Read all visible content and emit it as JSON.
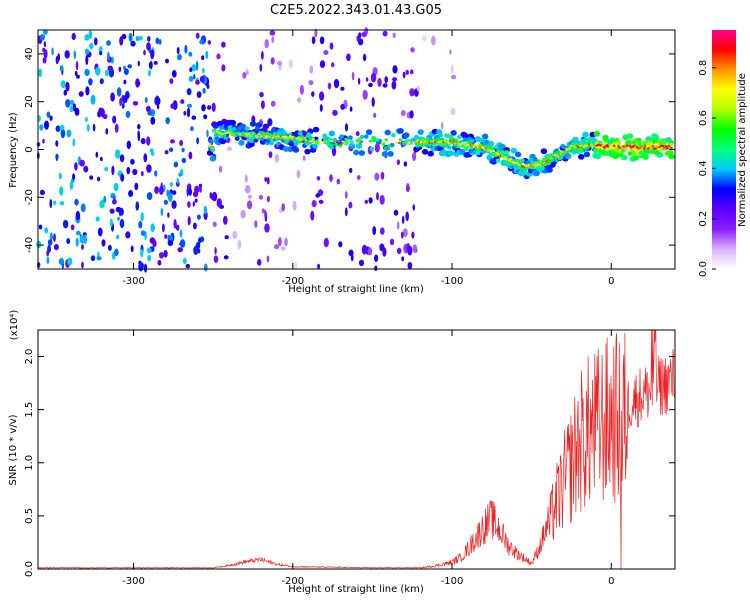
{
  "title": "C2E5.2022.343.01.43.G05",
  "chart_data": [
    {
      "type": "heatmap",
      "xlabel": "Height of straight line (km)",
      "ylabel": "Frequency (Hz)",
      "xlim": [
        -360,
        40
      ],
      "ylim": [
        -50,
        50
      ],
      "xticks": [
        -300,
        -200,
        -100,
        0
      ],
      "yticks": [
        -40,
        -20,
        0,
        20,
        40
      ],
      "colorbar": {
        "label": "Normalized spectral amplitude",
        "ticks": [
          "0.0",
          "0.2",
          "0.4",
          "0.6",
          "0.8"
        ],
        "tick_values": [
          0,
          0.2,
          0.4,
          0.6,
          0.8
        ],
        "range": [
          0,
          0.95
        ],
        "colors": [
          "#ffffff",
          "#d9b3ff",
          "#8a1cff",
          "#5a00ff",
          "#0000ff",
          "#00c8ff",
          "#00ff7f",
          "#00ff00",
          "#b4ff00",
          "#ffff00",
          "#ff9600",
          "#ff0000",
          "#ff0090"
        ]
      },
      "ridge": {
        "x": [
          -250,
          -200,
          -180,
          -120,
          -100,
          -80,
          -65,
          -55,
          -45,
          -35,
          -25,
          -15,
          0,
          10,
          20,
          40
        ],
        "y": [
          7,
          5,
          3,
          3,
          3,
          1,
          -4,
          -7,
          -6,
          -3,
          1,
          2,
          1,
          1,
          1,
          1
        ]
      },
      "noise_regions": [
        {
          "x_from": -360,
          "x_to": -253,
          "level": "strong"
        },
        {
          "x_from": -253,
          "x_to": -240,
          "level": "medium"
        },
        {
          "x_from": -240,
          "x_to": -225,
          "level": "weak"
        },
        {
          "x_from": -225,
          "x_to": -210,
          "level": "medium"
        },
        {
          "x_from": -210,
          "x_to": -188,
          "level": "weak"
        },
        {
          "x_from": -188,
          "x_to": -122,
          "level": "medium"
        },
        {
          "x_from": -122,
          "x_to": -98,
          "level": "faint"
        }
      ]
    },
    {
      "type": "line",
      "xlabel": "Height of straight line (km)",
      "ylabel": "SNR (10 * v/v)",
      "y_multiplier": "(x10⁴)",
      "xlim": [
        -360,
        40
      ],
      "ylim": [
        0,
        2.25
      ],
      "xticks": [
        -300,
        -200,
        -100,
        0
      ],
      "yticks": [
        "0.0",
        "0.5",
        "1.0",
        "1.5",
        "2.0"
      ],
      "ytick_values": [
        0,
        0.5,
        1.0,
        1.5,
        2.0
      ],
      "series": [
        {
          "color": "#ee2222",
          "x": [
            -360,
            -300,
            -250,
            -240,
            -230,
            -220,
            -210,
            -200,
            -150,
            -120,
            -110,
            -100,
            -95,
            -90,
            -85,
            -80,
            -75,
            -70,
            -65,
            -60,
            -55,
            -50,
            -45,
            -40,
            -35,
            -30,
            -25,
            -20,
            -15,
            -10,
            -5,
            0,
            5,
            10,
            15,
            20,
            25,
            30,
            35,
            40
          ],
          "y": [
            0.01,
            0.01,
            0.01,
            0.03,
            0.06,
            0.08,
            0.04,
            0.02,
            0.01,
            0.01,
            0.03,
            0.06,
            0.1,
            0.18,
            0.28,
            0.38,
            0.45,
            0.35,
            0.22,
            0.15,
            0.1,
            0.05,
            0.2,
            0.4,
            0.65,
            0.85,
            1.05,
            1.25,
            1.35,
            1.4,
            1.45,
            1.5,
            1.5,
            1.55,
            1.6,
            1.65,
            1.68,
            1.72,
            1.75,
            1.8
          ]
        }
      ]
    }
  ]
}
